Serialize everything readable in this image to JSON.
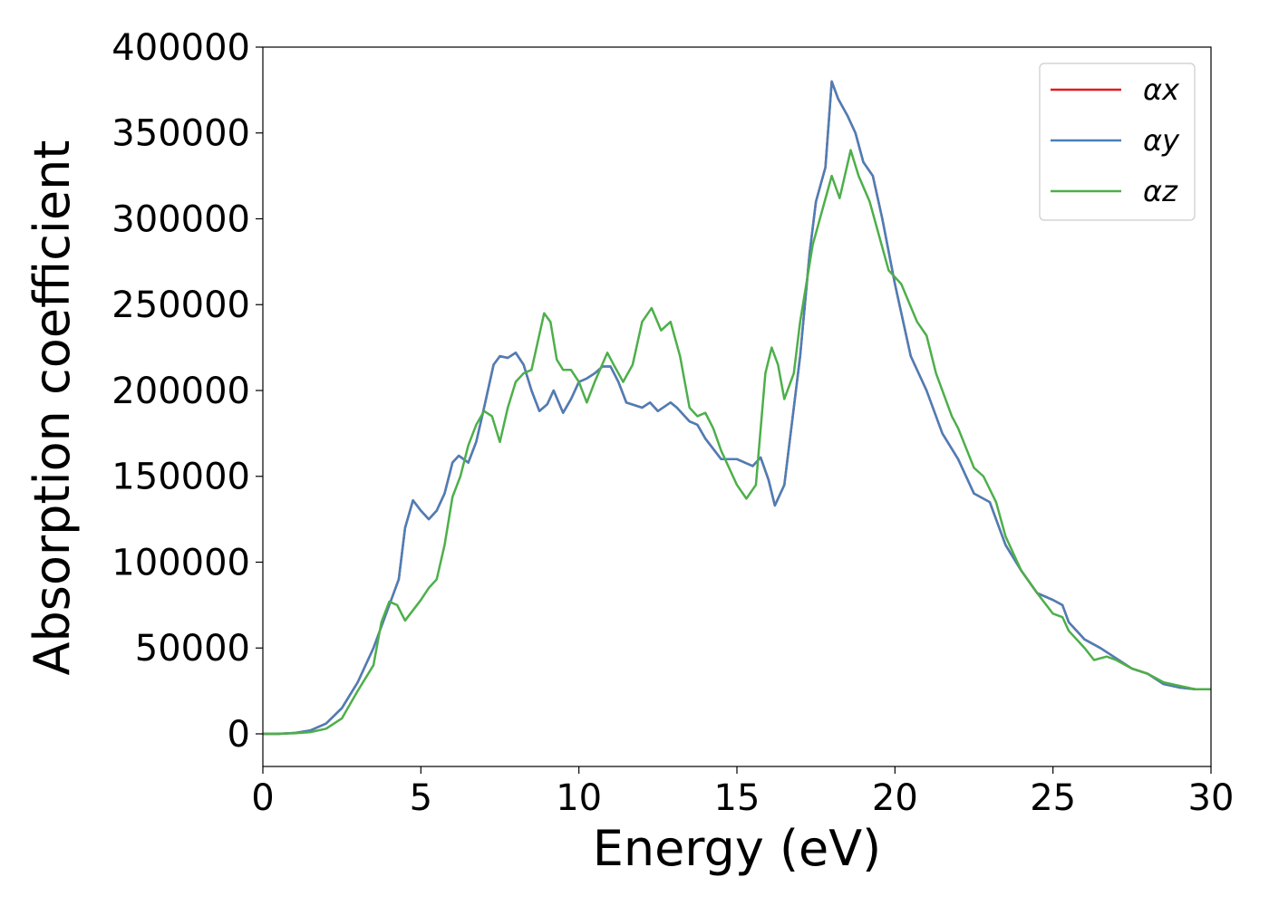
{
  "chart_data": {
    "type": "line",
    "xlabel": "Energy (eV)",
    "ylabel": "Absorption coefficient",
    "xlim": [
      0,
      30
    ],
    "xticks": [
      0,
      5,
      10,
      15,
      20,
      25,
      30
    ],
    "ylim": [
      -19000,
      400000
    ],
    "yticks": [
      0,
      50000,
      100000,
      150000,
      200000,
      250000,
      300000,
      350000,
      400000
    ],
    "legend": "upper right",
    "series": [
      {
        "name": "αx",
        "color": "#e41a1c",
        "x": [
          0,
          0.5,
          1,
          1.5,
          2,
          2.5,
          3,
          3.5,
          4,
          4.3,
          4.5,
          4.75,
          5,
          5.25,
          5.5,
          5.75,
          6,
          6.2,
          6.5,
          6.75,
          7,
          7.3,
          7.5,
          7.75,
          8,
          8.25,
          8.5,
          8.75,
          9,
          9.2,
          9.5,
          9.75,
          10,
          10.25,
          10.5,
          10.75,
          11,
          11.25,
          11.5,
          12,
          12.25,
          12.5,
          12.9,
          13.1,
          13.5,
          13.75,
          14,
          14.5,
          15,
          15.5,
          15.75,
          16,
          16.2,
          16.5,
          17,
          17.3,
          17.5,
          17.8,
          18,
          18.2,
          18.5,
          18.75,
          19,
          19.3,
          19.6,
          20,
          20.5,
          21,
          21.5,
          22,
          22.5,
          23,
          23.5,
          24,
          24.5,
          25,
          25.3,
          25.5,
          26,
          26.5,
          27,
          27.5,
          28,
          28.5,
          29,
          29.5,
          30
        ],
        "values": [
          0,
          0,
          500,
          2000,
          6000,
          15000,
          30000,
          50000,
          75000,
          90000,
          120000,
          136000,
          130000,
          125000,
          130000,
          140000,
          158000,
          162000,
          158000,
          170000,
          190000,
          215000,
          220000,
          219000,
          222000,
          215000,
          200000,
          188000,
          192000,
          200000,
          187000,
          195000,
          205000,
          207000,
          210000,
          214000,
          214000,
          205000,
          193000,
          190000,
          193000,
          188000,
          193000,
          190000,
          182000,
          180000,
          172000,
          160000,
          160000,
          156000,
          161000,
          148000,
          133000,
          145000,
          220000,
          280000,
          310000,
          330000,
          380000,
          370000,
          360000,
          350000,
          333000,
          325000,
          300000,
          262000,
          220000,
          200000,
          175000,
          160000,
          140000,
          135000,
          110000,
          95000,
          82000,
          78000,
          75000,
          65000,
          55000,
          50000,
          44000,
          38000,
          35000,
          29000,
          27000,
          26000,
          26000
        ]
      },
      {
        "name": "αy",
        "color": "#4a7fb8",
        "x": [
          0,
          0.5,
          1,
          1.5,
          2,
          2.5,
          3,
          3.5,
          4,
          4.3,
          4.5,
          4.75,
          5,
          5.25,
          5.5,
          5.75,
          6,
          6.2,
          6.5,
          6.75,
          7,
          7.3,
          7.5,
          7.75,
          8,
          8.25,
          8.5,
          8.75,
          9,
          9.2,
          9.5,
          9.75,
          10,
          10.25,
          10.5,
          10.75,
          11,
          11.25,
          11.5,
          12,
          12.25,
          12.5,
          12.9,
          13.1,
          13.5,
          13.75,
          14,
          14.5,
          15,
          15.5,
          15.75,
          16,
          16.2,
          16.5,
          17,
          17.3,
          17.5,
          17.8,
          18,
          18.2,
          18.5,
          18.75,
          19,
          19.3,
          19.6,
          20,
          20.5,
          21,
          21.5,
          22,
          22.5,
          23,
          23.5,
          24,
          24.5,
          25,
          25.3,
          25.5,
          26,
          26.5,
          27,
          27.5,
          28,
          28.5,
          29,
          29.5,
          30
        ],
        "values": [
          0,
          0,
          500,
          2000,
          6000,
          15000,
          30000,
          50000,
          75000,
          90000,
          120000,
          136000,
          130000,
          125000,
          130000,
          140000,
          158000,
          162000,
          158000,
          170000,
          190000,
          215000,
          220000,
          219000,
          222000,
          215000,
          200000,
          188000,
          192000,
          200000,
          187000,
          195000,
          205000,
          207000,
          210000,
          214000,
          214000,
          205000,
          193000,
          190000,
          193000,
          188000,
          193000,
          190000,
          182000,
          180000,
          172000,
          160000,
          160000,
          156000,
          161000,
          148000,
          133000,
          145000,
          220000,
          280000,
          310000,
          330000,
          380000,
          370000,
          360000,
          350000,
          333000,
          325000,
          300000,
          262000,
          220000,
          200000,
          175000,
          160000,
          140000,
          135000,
          110000,
          95000,
          82000,
          78000,
          75000,
          65000,
          55000,
          50000,
          44000,
          38000,
          35000,
          29000,
          27000,
          26000,
          26000
        ]
      },
      {
        "name": "αz",
        "color": "#4daf4a",
        "x": [
          0,
          1,
          1.5,
          2,
          2.5,
          3,
          3.5,
          3.75,
          4,
          4.25,
          4.5,
          4.75,
          5,
          5.25,
          5.5,
          5.75,
          6,
          6.25,
          6.5,
          6.75,
          7,
          7.25,
          7.5,
          7.75,
          8,
          8.25,
          8.5,
          8.9,
          9.1,
          9.3,
          9.5,
          9.75,
          10,
          10.25,
          10.5,
          10.9,
          11.1,
          11.4,
          11.7,
          12,
          12.3,
          12.6,
          12.9,
          13.2,
          13.5,
          13.75,
          14,
          14.25,
          14.5,
          15,
          15.3,
          15.6,
          15.9,
          16.1,
          16.3,
          16.5,
          16.8,
          17,
          17.4,
          17.7,
          18,
          18.25,
          18.6,
          18.85,
          19.2,
          19.5,
          19.8,
          20.2,
          20.7,
          21,
          21.3,
          21.8,
          22,
          22.5,
          22.8,
          23.2,
          23.5,
          24,
          24.5,
          25,
          25.3,
          25.5,
          26,
          26.3,
          26.7,
          27,
          27.5,
          28,
          28.5,
          29,
          29.5,
          30
        ],
        "values": [
          0,
          300,
          1000,
          3000,
          9000,
          25000,
          40000,
          65000,
          77000,
          75000,
          66000,
          72000,
          78000,
          85000,
          90000,
          110000,
          138000,
          150000,
          168000,
          180000,
          188000,
          185000,
          170000,
          190000,
          205000,
          210000,
          212000,
          245000,
          240000,
          218000,
          212000,
          212000,
          205000,
          193000,
          205000,
          222000,
          215000,
          205000,
          215000,
          240000,
          248000,
          235000,
          240000,
          220000,
          190000,
          185000,
          187000,
          178000,
          165000,
          145000,
          137000,
          145000,
          210000,
          225000,
          215000,
          195000,
          210000,
          240000,
          285000,
          305000,
          325000,
          312000,
          340000,
          325000,
          310000,
          290000,
          270000,
          262000,
          240000,
          232000,
          210000,
          185000,
          178000,
          155000,
          150000,
          135000,
          115000,
          95000,
          82000,
          70000,
          68000,
          60000,
          50000,
          43000,
          45000,
          43000,
          38000,
          35000,
          30000,
          28000,
          26000,
          26000
        ]
      }
    ]
  }
}
